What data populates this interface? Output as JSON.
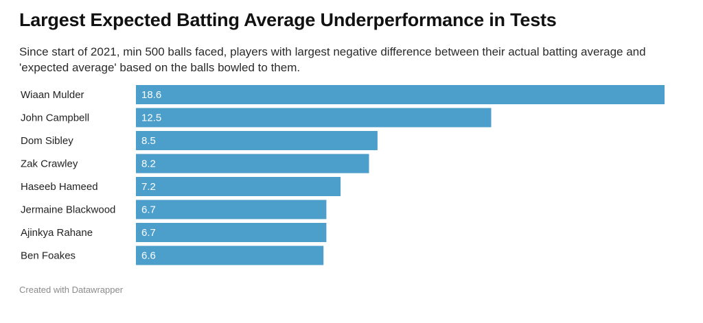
{
  "title": "Largest Expected Batting Average Underperformance in Tests",
  "subtitle": "Since start of 2021, min 500 balls faced, players with largest negative difference between their actual batting average and 'expected average' based on the balls bowled to them.",
  "credit": "Created with Datawrapper",
  "colors": {
    "bar": "#4c9fcb"
  },
  "chart_data": {
    "type": "bar",
    "orientation": "horizontal",
    "categories": [
      "Wiaan Mulder",
      "John Campbell",
      "Dom Sibley",
      "Zak Crawley",
      "Haseeb Hameed",
      "Jermaine Blackwood",
      "Ajinkya Rahane",
      "Ben Foakes"
    ],
    "values": [
      18.6,
      12.5,
      8.5,
      8.2,
      7.2,
      6.7,
      6.7,
      6.6
    ],
    "value_labels": [
      "18.6",
      "12.5",
      "8.5",
      "8.2",
      "7.2",
      "6.7",
      "6.7",
      "6.6"
    ],
    "xlim": [
      0,
      18.6
    ],
    "grid": false,
    "legend": "none"
  }
}
